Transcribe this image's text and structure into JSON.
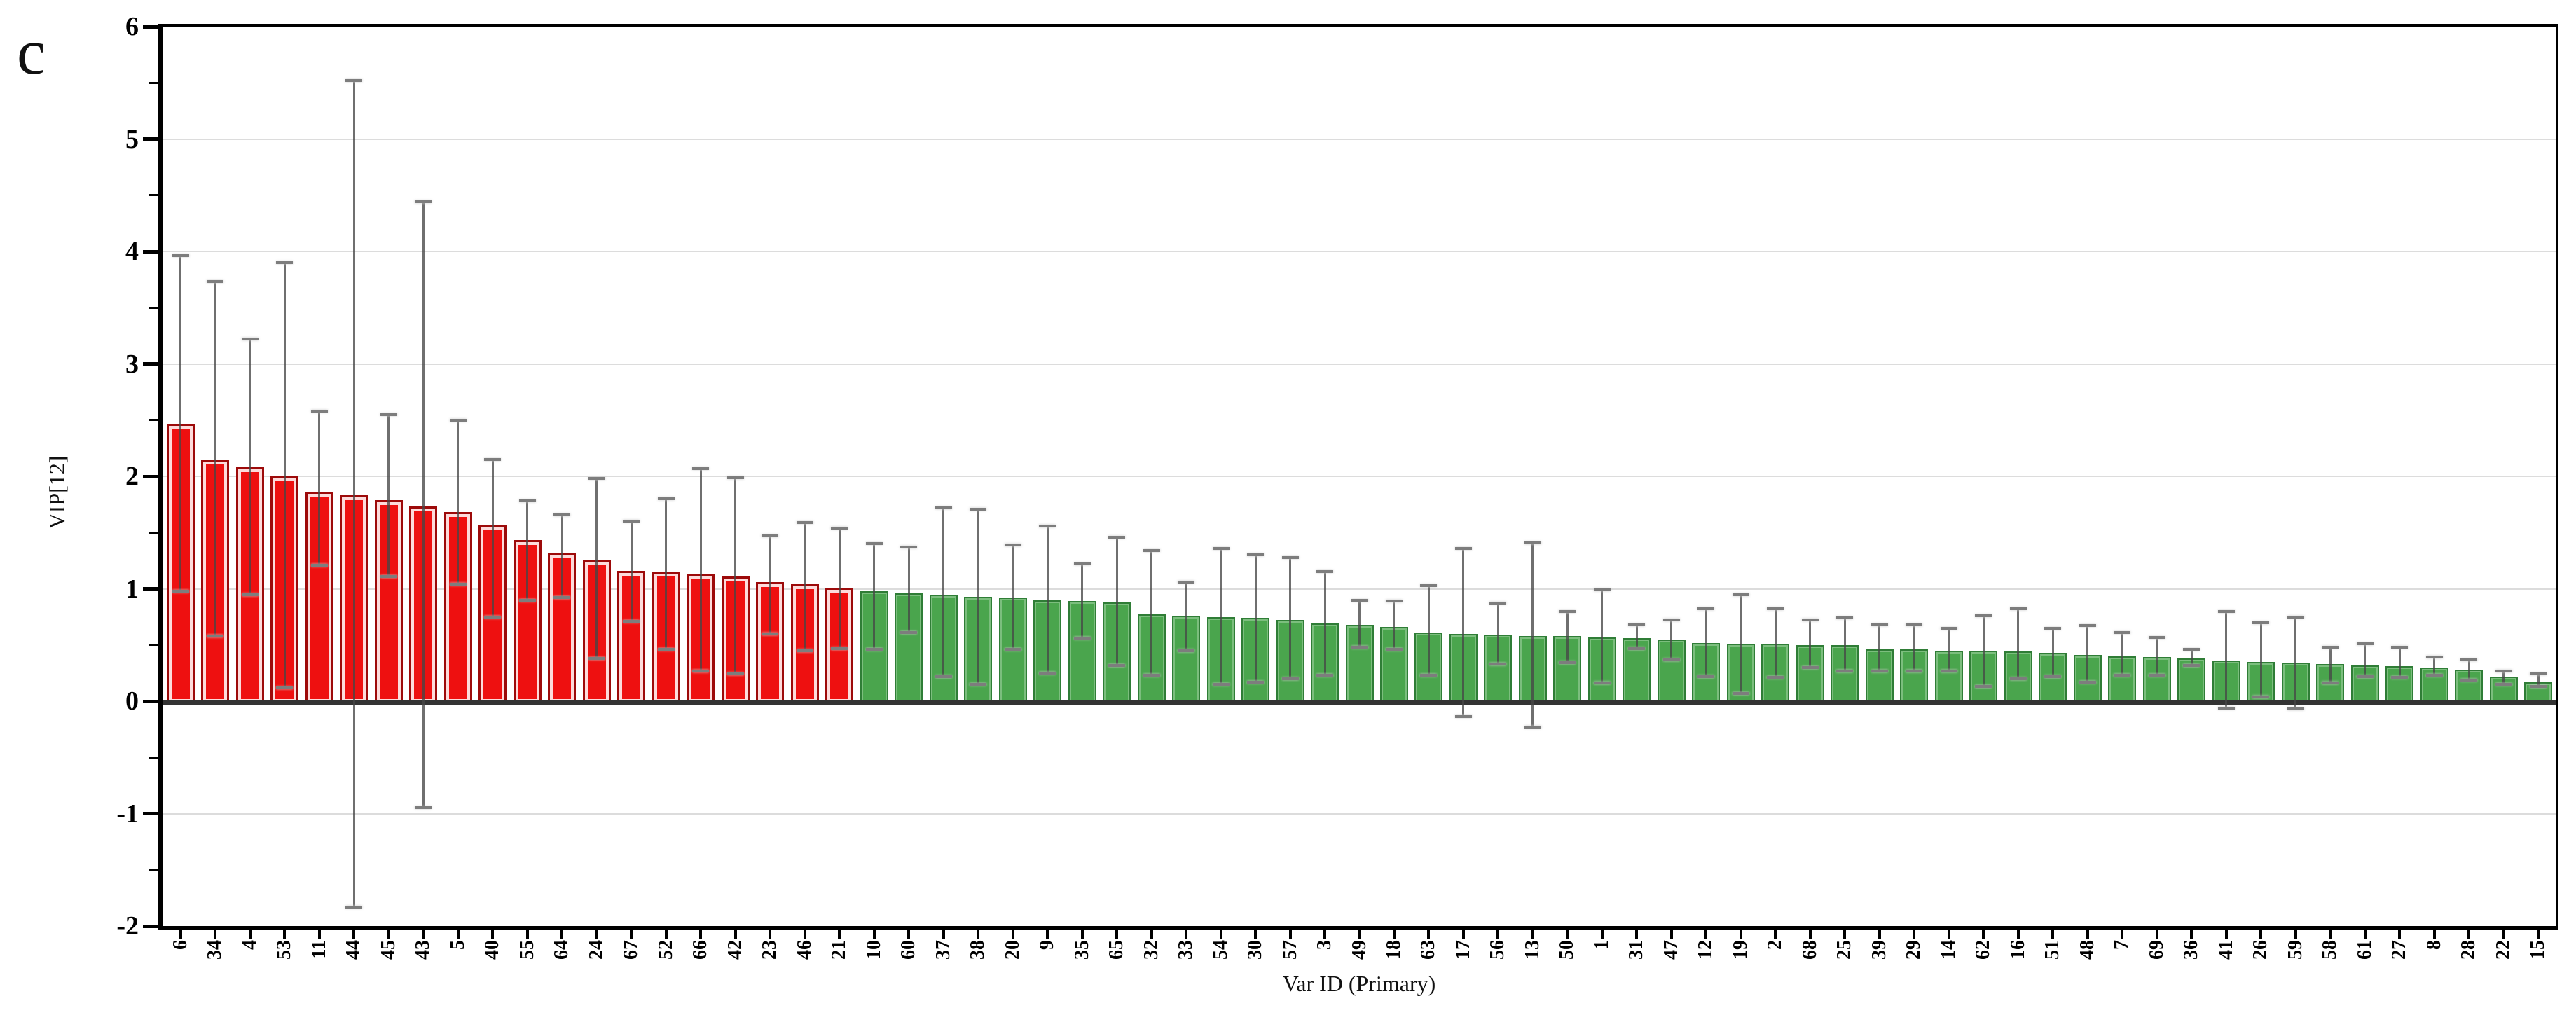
{
  "panel_label": "c",
  "chart_data": {
    "type": "bar",
    "title": "",
    "xlabel": "Var ID (Primary)",
    "ylabel": "VIP[12]",
    "ylim": [
      -2,
      6
    ],
    "ytick_labels": [
      "6",
      "5",
      "4",
      "3",
      "2",
      "1",
      "0",
      "-1",
      "-2"
    ],
    "ytick_values": [
      6,
      5,
      4,
      3,
      2,
      1,
      0,
      -1,
      -2
    ],
    "ytick_minor_values": [
      5.5,
      4.5,
      3.5,
      2.5,
      1.5,
      0.5,
      -0.5,
      -1.5
    ],
    "gridline_values": [
      5,
      4,
      3,
      2,
      1,
      -1
    ],
    "legend_position": "none",
    "grid": true,
    "red_bar_count": 20,
    "categories": [
      "6",
      "34",
      "4",
      "53",
      "11",
      "44",
      "45",
      "43",
      "5",
      "40",
      "55",
      "64",
      "24",
      "67",
      "52",
      "66",
      "42",
      "23",
      "46",
      "21",
      "10",
      "60",
      "37",
      "38",
      "20",
      "9",
      "35",
      "65",
      "32",
      "33",
      "54",
      "30",
      "57",
      "3",
      "49",
      "18",
      "63",
      "17",
      "56",
      "13",
      "50",
      "1",
      "31",
      "47",
      "12",
      "19",
      "2",
      "68",
      "25",
      "39",
      "29",
      "14",
      "62",
      "16",
      "51",
      "48",
      "7",
      "69",
      "36",
      "41",
      "26",
      "59",
      "58",
      "61",
      "27",
      "8",
      "28",
      "22",
      "15"
    ],
    "values": [
      2.47,
      2.15,
      2.08,
      2.0,
      1.86,
      1.83,
      1.79,
      1.73,
      1.68,
      1.57,
      1.43,
      1.32,
      1.26,
      1.16,
      1.15,
      1.13,
      1.11,
      1.06,
      1.04,
      1.01,
      0.98,
      0.96,
      0.95,
      0.93,
      0.92,
      0.9,
      0.89,
      0.88,
      0.77,
      0.76,
      0.75,
      0.74,
      0.72,
      0.69,
      0.68,
      0.66,
      0.61,
      0.6,
      0.59,
      0.58,
      0.58,
      0.57,
      0.56,
      0.55,
      0.52,
      0.51,
      0.51,
      0.5,
      0.5,
      0.46,
      0.46,
      0.45,
      0.45,
      0.44,
      0.43,
      0.41,
      0.4,
      0.39,
      0.38,
      0.36,
      0.35,
      0.34,
      0.33,
      0.32,
      0.31,
      0.3,
      0.28,
      0.22,
      0.17
    ],
    "error_low": [
      0.98,
      0.58,
      0.95,
      0.12,
      1.21,
      -1.83,
      1.11,
      -0.95,
      1.04,
      0.75,
      0.9,
      0.92,
      0.38,
      0.71,
      0.46,
      0.27,
      0.24,
      0.6,
      0.45,
      0.47,
      0.46,
      0.61,
      0.22,
      0.15,
      0.46,
      0.25,
      0.56,
      0.32,
      0.23,
      0.45,
      0.15,
      0.17,
      0.2,
      0.23,
      0.48,
      0.46,
      0.23,
      -0.14,
      0.33,
      -0.23,
      0.34,
      0.16,
      0.47,
      0.37,
      0.22,
      0.07,
      0.21,
      0.3,
      0.27,
      0.27,
      0.27,
      0.27,
      0.13,
      0.2,
      0.22,
      0.17,
      0.23,
      0.23,
      0.32,
      -0.06,
      0.04,
      -0.07,
      0.16,
      0.22,
      0.21,
      0.23,
      0.19,
      0.15,
      0.13
    ],
    "error_high": [
      3.96,
      3.73,
      3.22,
      3.9,
      2.58,
      5.52,
      2.55,
      4.44,
      2.5,
      2.15,
      1.78,
      1.66,
      1.98,
      1.6,
      1.8,
      2.07,
      1.99,
      1.47,
      1.59,
      1.54,
      1.4,
      1.37,
      1.72,
      1.71,
      1.39,
      1.56,
      1.22,
      1.46,
      1.34,
      1.06,
      1.36,
      1.3,
      1.28,
      1.15,
      0.9,
      0.89,
      1.03,
      1.36,
      0.87,
      1.41,
      0.8,
      0.99,
      0.68,
      0.72,
      0.82,
      0.95,
      0.82,
      0.72,
      0.74,
      0.68,
      0.68,
      0.65,
      0.76,
      0.82,
      0.65,
      0.67,
      0.61,
      0.57,
      0.46,
      0.8,
      0.7,
      0.75,
      0.48,
      0.51,
      0.48,
      0.39,
      0.37,
      0.27,
      0.24
    ],
    "colors": {
      "bar_above_threshold": "#ee1010",
      "bar_above_border": "#9d0a0a",
      "bar_below_threshold": "#4aa54d",
      "bar_below_border": "#2f7d36",
      "error_bar": "#5a5a5a",
      "gridline": "#dcdcdc",
      "axis": "#000000",
      "baseline": "#333333",
      "background": "#ffffff"
    }
  }
}
